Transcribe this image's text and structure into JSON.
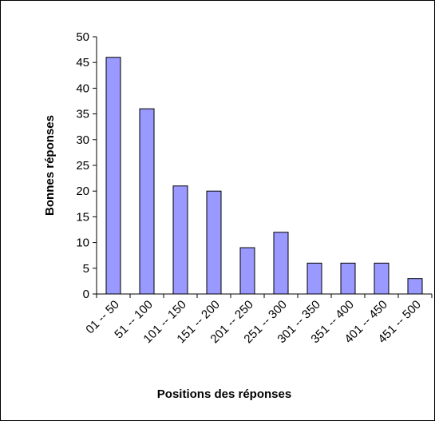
{
  "chart_data": {
    "type": "bar",
    "title": "",
    "xlabel": "Positions des réponses",
    "ylabel": "Bonnes réponses",
    "categories": [
      "01 -- 50",
      "51 -- 100",
      "101 -- 150",
      "151 -- 200",
      "201 -- 250",
      "251 -- 300",
      "301 -- 350",
      "351 -- 400",
      "401 -- 450",
      "451 -- 500"
    ],
    "values": [
      46,
      36,
      21,
      20,
      9,
      12,
      6,
      6,
      6,
      3
    ],
    "ylim": [
      0,
      50
    ],
    "yticks": [
      "0",
      "5",
      "10",
      "15",
      "20",
      "25",
      "30",
      "35",
      "40",
      "45",
      "50"
    ],
    "grid": false,
    "bar_color": "#9999ff",
    "bar_edge_color": "#000000"
  }
}
